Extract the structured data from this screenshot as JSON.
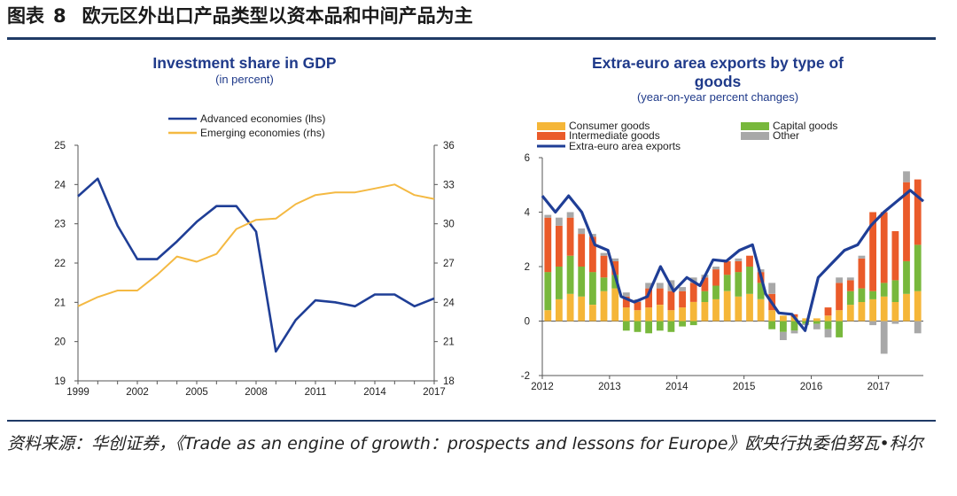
{
  "figure": {
    "label": "图表",
    "number": "8",
    "title": "欧元区外出口产品类型以资本品和中间产品为主",
    "source": "资料来源：华创证券，《Trade as an engine of growth：prospects and lessons for Europe》欧央行执委伯努瓦•科尔"
  },
  "colors": {
    "advanced": "#1f3e96",
    "emerging": "#f4b942",
    "consumer": "#f5b638",
    "capital": "#78b83c",
    "intermediate": "#ea5b2a",
    "other": "#a8a8a8",
    "exports": "#1f3e96",
    "rule": "#1f3a66"
  },
  "chart_data": [
    {
      "type": "line",
      "title": "Investment share in GDP",
      "subtitle": "(in percent)",
      "x": [
        1999,
        2000,
        2001,
        2002,
        2003,
        2004,
        2005,
        2006,
        2007,
        2008,
        2009,
        2010,
        2011,
        2012,
        2013,
        2014,
        2015,
        2016,
        2017
      ],
      "xticks": [
        1999,
        2002,
        2005,
        2008,
        2011,
        2014,
        2017
      ],
      "ylim_left": [
        19,
        25
      ],
      "yticks_left": [
        19,
        20,
        21,
        22,
        23,
        24,
        25
      ],
      "ylim_right": [
        18,
        36
      ],
      "yticks_right": [
        18,
        21,
        24,
        27,
        30,
        33,
        36
      ],
      "grid": false,
      "legend_position": "top",
      "series": [
        {
          "name": "Advanced economies (lhs)",
          "axis": "left",
          "color_key": "advanced",
          "values": [
            23.7,
            24.15,
            22.95,
            22.1,
            22.1,
            22.55,
            23.05,
            23.45,
            23.45,
            22.8,
            19.75,
            20.55,
            21.05,
            21.0,
            20.9,
            21.2,
            21.2,
            20.9,
            21.1
          ]
        },
        {
          "name": "Emerging economies (rhs)",
          "axis": "right",
          "color_key": "emerging",
          "values": [
            23.7,
            24.4,
            24.9,
            24.9,
            26.1,
            27.5,
            27.1,
            27.7,
            29.6,
            30.3,
            30.4,
            31.5,
            32.2,
            32.4,
            32.4,
            32.7,
            33.0,
            32.2,
            31.9
          ]
        }
      ]
    },
    {
      "type": "bar",
      "stacked": true,
      "title_line1": "Extra-euro area exports by type of",
      "title_line2": "goods",
      "subtitle": "(year-on-year percent changes)",
      "ylim": [
        -2,
        6
      ],
      "yticks": [
        -2,
        0,
        2,
        4,
        6
      ],
      "grid": false,
      "legend_position": "top",
      "x_start": 2012.0,
      "x_step": 0.1667,
      "xticks": [
        "2012",
        "2013",
        "2014",
        "2015",
        "2016",
        "2017"
      ],
      "categories_count": 34,
      "series": [
        {
          "name": "Consumer goods",
          "color_key": "consumer",
          "values": [
            0.4,
            0.8,
            1.0,
            0.9,
            0.6,
            1.1,
            1.2,
            0.5,
            0.4,
            0.5,
            0.6,
            0.4,
            0.5,
            0.7,
            0.7,
            0.8,
            1.1,
            0.9,
            1.0,
            0.8,
            0.4,
            0.2,
            0.15,
            0.1,
            0.1,
            0.2,
            0.4,
            0.6,
            0.7,
            0.8,
            0.9,
            0.7,
            1.0,
            1.1
          ]
        },
        {
          "name": "Capital goods",
          "color_key": "capital",
          "values": [
            1.4,
            1.2,
            1.4,
            1.1,
            1.2,
            0.5,
            0.5,
            -0.35,
            -0.4,
            -0.45,
            -0.35,
            -0.4,
            -0.2,
            -0.15,
            0.4,
            0.5,
            0.6,
            0.9,
            1.0,
            0.6,
            -0.3,
            -0.4,
            -0.35,
            -0.1,
            -0.1,
            -0.3,
            -0.6,
            0.5,
            0.5,
            0.3,
            0.5,
            0.8,
            1.2,
            1.7
          ]
        },
        {
          "name": "Intermediate goods",
          "color_key": "intermediate",
          "values": [
            2.0,
            1.5,
            1.4,
            1.2,
            1.3,
            0.8,
            0.5,
            0.4,
            0.3,
            0.7,
            0.6,
            0.7,
            0.6,
            0.7,
            0.5,
            0.6,
            0.5,
            0.4,
            0.4,
            0.4,
            0.6,
            0.0,
            0.1,
            0.0,
            0.0,
            0.3,
            1.0,
            0.4,
            1.1,
            2.9,
            2.6,
            1.8,
            2.9,
            2.4
          ]
        },
        {
          "name": "Other",
          "color_key": "other",
          "values": [
            0.1,
            0.3,
            0.2,
            0.2,
            0.1,
            0.1,
            0.1,
            0.15,
            0.1,
            0.2,
            0.2,
            0.4,
            0.15,
            0.2,
            0.1,
            0.1,
            0.0,
            0.1,
            0.0,
            0.1,
            0.4,
            -0.3,
            -0.1,
            -0.05,
            -0.2,
            -0.3,
            0.2,
            0.1,
            0.1,
            -0.15,
            -1.2,
            -0.1,
            0.4,
            -0.45
          ]
        }
      ],
      "line": {
        "name": "Extra-euro area exports",
        "color_key": "exports",
        "values": [
          4.6,
          4.0,
          4.6,
          4.0,
          2.8,
          2.6,
          0.9,
          0.7,
          0.9,
          2.0,
          1.1,
          1.6,
          1.3,
          2.25,
          2.2,
          2.6,
          2.8,
          1.0,
          0.3,
          0.25,
          -0.35,
          1.6,
          2.1,
          2.6,
          2.8,
          3.5,
          4.0,
          4.4,
          4.8,
          4.4
        ]
      },
      "line_note": "line spans categories 0-33 sampled (see script mapping)"
    }
  ]
}
